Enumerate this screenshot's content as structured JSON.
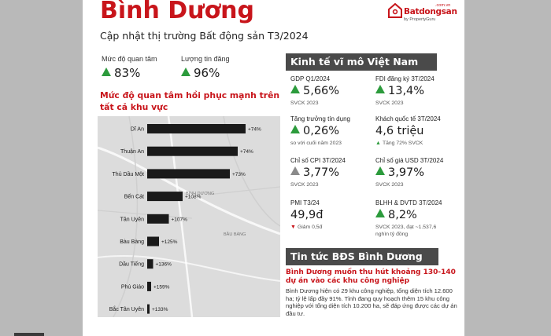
{
  "header": {
    "title": "Bình Dương",
    "subtitle": "Cập nhật thị trường Bất động sản T3/2024"
  },
  "brand": {
    "domain": ".com.vn",
    "name": "Batdongsan",
    "byline": "by PropertyGuru",
    "color": "#c8151b"
  },
  "kpis": [
    {
      "label": "Mức độ quan tâm",
      "value": "83%"
    },
    {
      "label": "Lượng tin đăng",
      "value": "96%"
    }
  ],
  "section_title": "Mức độ quan tâm hồi phục mạnh trên tất cả khu vực",
  "map": {
    "labels": [
      {
        "text": "BÌNH DƯƠNG"
      },
      {
        "text": "BẦU BÀNG"
      }
    ]
  },
  "chart_data": {
    "type": "bar",
    "orientation": "horizontal",
    "categories": [
      "Dĩ An",
      "Thuận An",
      "Thủ Dầu Một",
      "Bến Cát",
      "Tân Uyên",
      "Bàu Bàng",
      "Dầu Tiếng",
      "Phú Giáo",
      "Bắc Tân Uyên"
    ],
    "values": [
      74,
      74,
      73,
      108,
      107,
      125,
      136,
      159,
      133
    ],
    "data_labels": [
      "+74%",
      "+74%",
      "+73%",
      "+108%",
      "+107%",
      "+125%",
      "+136%",
      "+159%",
      "+133%"
    ],
    "bar_relative_lengths": [
      1.0,
      0.92,
      0.84,
      0.36,
      0.22,
      0.12,
      0.06,
      0.04,
      0.02
    ],
    "bar_color": "#1a1a1a"
  },
  "macro": {
    "heading": "Kinh tế vĩ mô Việt Nam",
    "items": [
      {
        "label": "GDP Q1/2024",
        "value": "5,66%",
        "sub": "SVCK 2023",
        "trend": "up"
      },
      {
        "label": "FDI đăng ký 3T/2024",
        "value": "13,4%",
        "sub": "SVCK 2023",
        "trend": "up"
      },
      {
        "label": "Tăng trưởng tín dụng",
        "value": "0,26%",
        "sub": "so với cuối năm 2023",
        "trend": "up"
      },
      {
        "label": "Khách quốc tế 3T/2024",
        "value": "4,6 triệu",
        "sub": "Tăng 72% SVCK",
        "trend": "none",
        "sub_trend": "up"
      },
      {
        "label": "Chỉ số CPI 3T/2024",
        "value": "3,77%",
        "sub": "SVCK 2023",
        "trend": "flat"
      },
      {
        "label": "Chỉ số giá USD 3T/2024",
        "value": "3,97%",
        "sub": "SVCK 2023",
        "trend": "up"
      },
      {
        "label": "PMI T3/24",
        "value": "49,9đ",
        "sub": "Giảm 0,5đ",
        "trend": "none",
        "sub_trend": "down"
      },
      {
        "label": "BLHH & DVTD 3T/2024",
        "value": "8,2%",
        "sub": "SVCK 2023, đạt ~1.537,6 nghìn tỷ đồng",
        "trend": "up"
      }
    ]
  },
  "news": {
    "heading": "Tin tức BĐS Bình Dương",
    "title": "Bình Dương muốn thu hút khoảng 130-140 dự án vào các khu công nghiệp",
    "body": "Bình Dương hiện có 29 khu công nghiệp, tổng diện tích 12.600 ha; tỷ lệ lấp đầy 91%. Tỉnh đang quy hoạch thêm 15 khu công nghiệp với tổng diện tích 10.200 ha, sẽ đáp ứng được các dự án đầu tư."
  }
}
